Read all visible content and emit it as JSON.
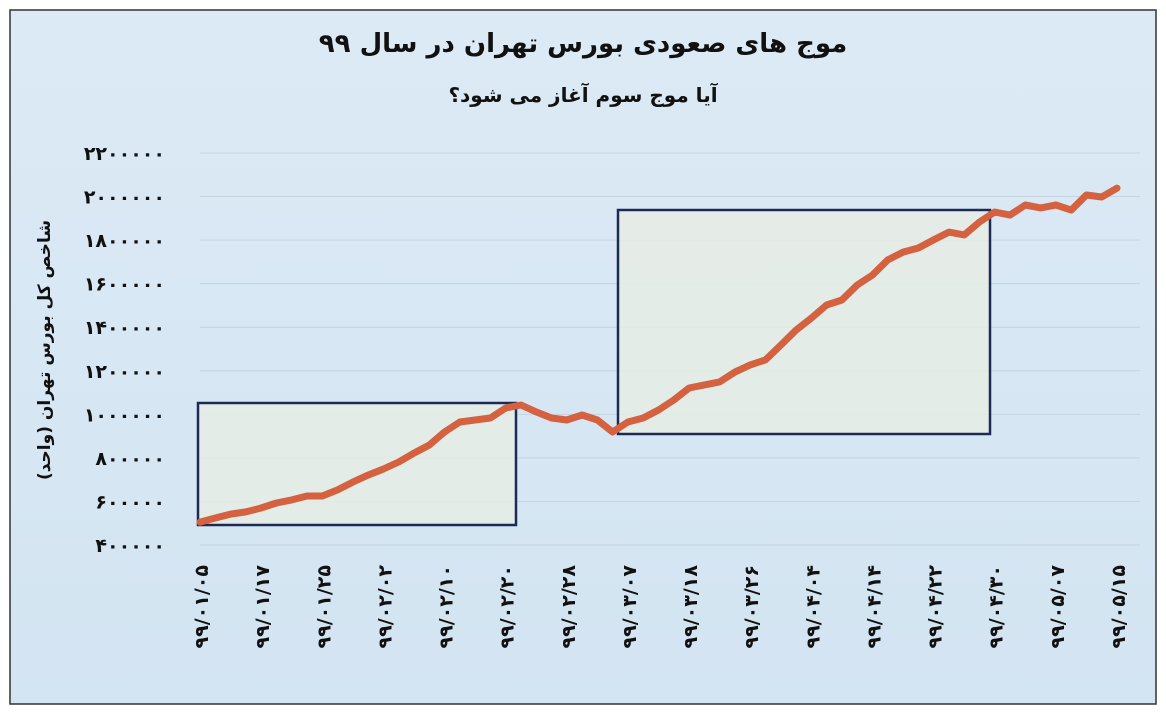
{
  "chart_data": {
    "type": "line",
    "title": "موج های صعودی بورس تهران در سال ۹۹",
    "subtitle": "آیا موج سوم آغاز می شود؟",
    "y_label": "شاخص کل بورس تهران (واحد)",
    "categories": [
      "۹۹/۰۱/۰۵",
      null,
      null,
      null,
      "۹۹/۰۱/۱۷",
      null,
      null,
      null,
      "۹۹/۰۱/۲۵",
      null,
      null,
      null,
      "۹۹/۰۲/۰۲",
      null,
      null,
      null,
      "۹۹/۰۲/۱۰",
      null,
      null,
      null,
      "۹۹/۰۲/۲۰",
      null,
      null,
      null,
      "۹۹/۰۲/۲۸",
      null,
      null,
      null,
      "۹۹/۰۳/۰۷",
      null,
      null,
      null,
      "۹۹/۰۳/۱۸",
      null,
      null,
      null,
      "۹۹/۰۳/۲۶",
      null,
      null,
      null,
      "۹۹/۰۴/۰۴",
      null,
      null,
      null,
      "۹۹/۰۴/۱۴",
      null,
      null,
      null,
      "۹۹/۰۴/۲۲",
      null,
      null,
      null,
      "۹۹/۰۴/۳۰",
      null,
      null,
      null,
      "۹۹/۰۵/۰۷",
      null,
      null,
      null,
      "۹۹/۰۵/۱۵"
    ],
    "series": [
      {
        "name": "شاخص کل",
        "color": "#d4613f",
        "values": [
          505000,
          524000,
          542000,
          552000,
          570000,
          593000,
          607000,
          625000,
          625000,
          653000,
          689000,
          721000,
          749000,
          781000,
          822000,
          859000,
          919000,
          965000,
          974000,
          983000,
          1029000,
          1043000,
          1011000,
          983000,
          974000,
          997000,
          974000,
          919000,
          965000,
          983000,
          1020000,
          1066000,
          1121000,
          1135000,
          1149000,
          1194000,
          1227000,
          1250000,
          1318000,
          1387000,
          1442000,
          1502000,
          1525000,
          1594000,
          1640000,
          1709000,
          1745000,
          1764000,
          1801000,
          1837000,
          1824000,
          1883000,
          1929000,
          1915000,
          1961000,
          1948000,
          1961000,
          1938000,
          2007000,
          1998000,
          2039000
        ]
      }
    ],
    "ylim": [
      400000,
      2200000
    ],
    "yticks": [
      {
        "value": 400000,
        "label": "۴۰۰۰۰۰"
      },
      {
        "value": 600000,
        "label": "۶۰۰۰۰۰"
      },
      {
        "value": 800000,
        "label": "۸۰۰۰۰۰"
      },
      {
        "value": 1000000,
        "label": "۱۰۰۰۰۰۰"
      },
      {
        "value": 1200000,
        "label": "۱۲۰۰۰۰۰"
      },
      {
        "value": 1400000,
        "label": "۱۴۰۰۰۰۰"
      },
      {
        "value": 1600000,
        "label": "۱۶۰۰۰۰۰"
      },
      {
        "value": 1800000,
        "label": "۱۸۰۰۰۰۰"
      },
      {
        "value": 2000000,
        "label": "۲۰۰۰۰۰۰"
      },
      {
        "value": 2200000,
        "label": "۲۲۰۰۰۰۰"
      }
    ],
    "grid": true
  }
}
